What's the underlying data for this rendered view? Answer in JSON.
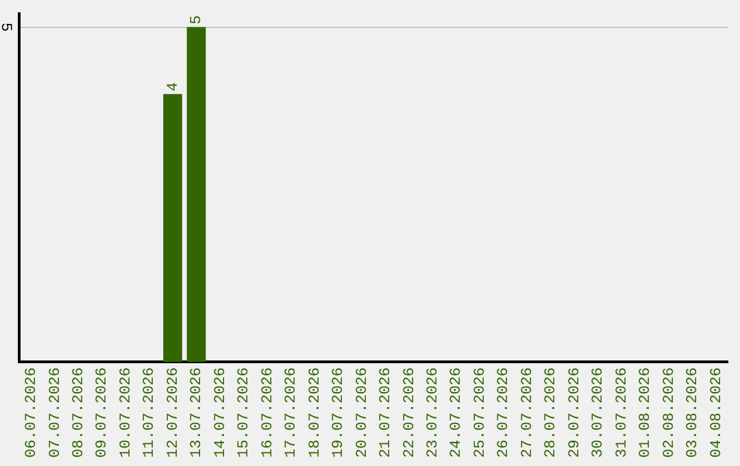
{
  "chart_data": {
    "type": "bar",
    "categories": [
      "06.07.2026",
      "07.07.2026",
      "08.07.2026",
      "09.07.2026",
      "10.07.2026",
      "11.07.2026",
      "12.07.2026",
      "13.07.2026",
      "14.07.2026",
      "15.07.2026",
      "16.07.2026",
      "17.07.2026",
      "18.07.2026",
      "19.07.2026",
      "20.07.2026",
      "21.07.2026",
      "22.07.2026",
      "23.07.2026",
      "24.07.2026",
      "25.07.2026",
      "26.07.2026",
      "27.07.2026",
      "28.07.2026",
      "29.07.2026",
      "30.07.2026",
      "31.07.2026",
      "01.08.2026",
      "02.08.2026",
      "03.08.2026",
      "04.08.2026"
    ],
    "values": [
      0,
      0,
      0,
      0,
      0,
      0,
      4,
      5,
      0,
      0,
      0,
      0,
      0,
      0,
      0,
      0,
      0,
      0,
      0,
      0,
      0,
      0,
      0,
      0,
      0,
      0,
      0,
      0,
      0,
      0
    ],
    "value_labels": [
      null,
      null,
      null,
      null,
      null,
      null,
      "4",
      "5",
      null,
      null,
      null,
      null,
      null,
      null,
      null,
      null,
      null,
      null,
      null,
      null,
      null,
      null,
      null,
      null,
      null,
      null,
      null,
      null,
      null,
      null
    ],
    "color": "#336600",
    "ylim": [
      0,
      5.2
    ],
    "yticks": [
      5
    ],
    "grid": "y",
    "legend": false
  }
}
